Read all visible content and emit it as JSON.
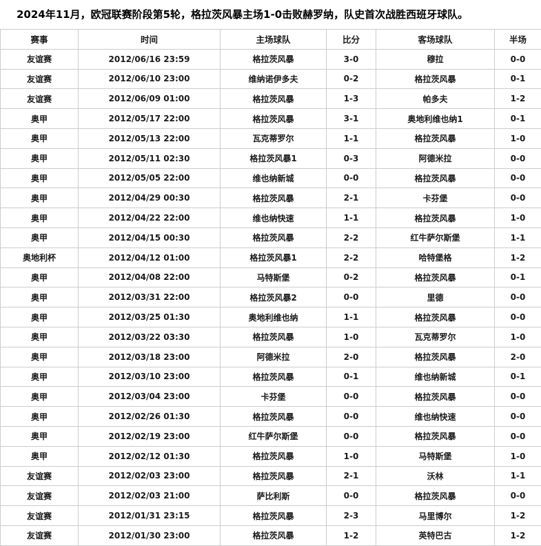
{
  "headline": "2024年11月，欧冠联赛阶段第5轮，格拉茨风暴主场1-0击败赫罗纳，队史首次战胜西班牙球队。",
  "colors": {
    "border": "#cccccc",
    "text": "#1a1a1a",
    "background": "#ffffff"
  },
  "table": {
    "columns": [
      "赛事",
      "时间",
      "主场球队",
      "比分",
      "客场球队",
      "半场"
    ],
    "rows": [
      [
        "友谊赛",
        "2012/06/16 23:59",
        "格拉茨风暴",
        "3-0",
        "穆拉",
        "0-0"
      ],
      [
        "友谊赛",
        "2012/06/10 23:00",
        "维纳诺伊多夫",
        "0-2",
        "格拉茨风暴",
        "0-1"
      ],
      [
        "友谊赛",
        "2012/06/09 01:00",
        "格拉茨风暴",
        "1-3",
        "帕多夫",
        "1-2"
      ],
      [
        "奥甲",
        "2012/05/17 22:00",
        "格拉茨风暴",
        "3-1",
        "奥地利维也纳1",
        "0-1"
      ],
      [
        "奥甲",
        "2012/05/13 22:00",
        "瓦克蒂罗尔",
        "1-1",
        "格拉茨风暴",
        "1-0"
      ],
      [
        "奥甲",
        "2012/05/11 02:30",
        "格拉茨风暴1",
        "0-3",
        "阿德米拉",
        "0-0"
      ],
      [
        "奥甲",
        "2012/05/05 22:00",
        "维也纳新城",
        "0-0",
        "格拉茨风暴",
        "0-0"
      ],
      [
        "奥甲",
        "2012/04/29 00:30",
        "格拉茨风暴",
        "2-1",
        "卡芬堡",
        "0-0"
      ],
      [
        "奥甲",
        "2012/04/22 22:00",
        "维也纳快速",
        "1-1",
        "格拉茨风暴",
        "1-0"
      ],
      [
        "奥甲",
        "2012/04/15 00:30",
        "格拉茨风暴",
        "2-2",
        "红牛萨尔斯堡",
        "1-1"
      ],
      [
        "奥地利杯",
        "2012/04/12 01:00",
        "格拉茨风暴1",
        "2-2",
        "哈特堡格",
        "1-2"
      ],
      [
        "奥甲",
        "2012/04/08 22:00",
        "马特斯堡",
        "0-2",
        "格拉茨风暴",
        "0-1"
      ],
      [
        "奥甲",
        "2012/03/31 22:00",
        "格拉茨风暴2",
        "0-0",
        "里德",
        "0-0"
      ],
      [
        "奥甲",
        "2012/03/25 01:30",
        "奥地利维也纳",
        "1-1",
        "格拉茨风暴",
        "0-0"
      ],
      [
        "奥甲",
        "2012/03/22 03:30",
        "格拉茨风暴",
        "1-0",
        "瓦克蒂罗尔",
        "1-0"
      ],
      [
        "奥甲",
        "2012/03/18 23:00",
        "阿德米拉",
        "2-0",
        "格拉茨风暴",
        "2-0"
      ],
      [
        "奥甲",
        "2012/03/10 23:00",
        "格拉茨风暴",
        "0-1",
        "维也纳新城",
        "0-1"
      ],
      [
        "奥甲",
        "2012/03/04 23:00",
        "卡芬堡",
        "0-0",
        "格拉茨风暴",
        "0-0"
      ],
      [
        "奥甲",
        "2012/02/26 01:30",
        "格拉茨风暴",
        "0-0",
        "维也纳快速",
        "0-0"
      ],
      [
        "奥甲",
        "2012/02/19 23:00",
        "红牛萨尔斯堡",
        "0-0",
        "格拉茨风暴",
        "0-0"
      ],
      [
        "奥甲",
        "2012/02/12 01:30",
        "格拉茨风暴",
        "1-0",
        "马特斯堡",
        "1-0"
      ],
      [
        "友谊赛",
        "2012/02/03 23:00",
        "格拉茨风暴",
        "2-1",
        "沃林",
        "1-1"
      ],
      [
        "友谊赛",
        "2012/02/03 21:00",
        "萨比利斯",
        "0-0",
        "格拉茨风暴",
        "0-0"
      ],
      [
        "友谊赛",
        "2012/01/31 23:15",
        "格拉茨风暴",
        "2-3",
        "马里博尔",
        "1-2"
      ],
      [
        "友谊赛",
        "2012/01/30 23:00",
        "格拉茨风暴",
        "1-2",
        "英特巴古",
        "1-2"
      ]
    ]
  }
}
